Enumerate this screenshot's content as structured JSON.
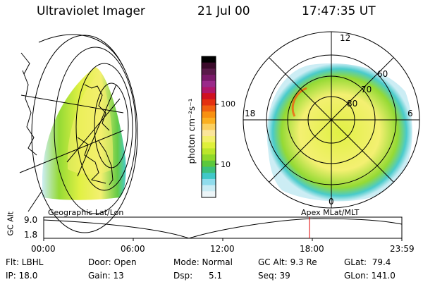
{
  "header": {
    "instrument": "Ultraviolet Imager",
    "date": "21 Jul 00",
    "time": "17:47:35 UT"
  },
  "colorbar": {
    "unit_label": "photon cm⁻²s⁻¹",
    "ticks": [
      "100",
      "10"
    ],
    "colors": [
      "#000000",
      "#3a0a2a",
      "#5a1a4a",
      "#7a1a6a",
      "#9a2a8a",
      "#b0176a",
      "#d01020",
      "#e43010",
      "#f06010",
      "#f89010",
      "#fbb020",
      "#fbd060",
      "#fbe59a",
      "#f3ef6a",
      "#dff03a",
      "#bbe62a",
      "#8fd82a",
      "#5cc83c",
      "#3cc07c",
      "#40c8c8",
      "#8fdcec",
      "#c9ecf4",
      "#ecf5f8"
    ]
  },
  "panels": {
    "left_caption": "Geographic Lat/Lon",
    "right_caption": "Apex MLat/MLT",
    "mlt_labels": {
      "top": "12",
      "left": "18",
      "right": "6",
      "bottom": "0"
    },
    "mlat_labels": [
      "60",
      "70",
      "80"
    ]
  },
  "altitude_plot": {
    "ylabel": "GC Alt",
    "yticks": [
      "9.0",
      "1.8"
    ],
    "xticks": [
      "00:00",
      "06:00",
      "12:00",
      "18:00",
      "23:59"
    ],
    "marker_color": "#e00000"
  },
  "status": {
    "row1": {
      "flt": "Flt: LBHL",
      "door": "Door: Open",
      "mode": "Mode: Normal",
      "gcalt": "GC Alt: 9.3 Re",
      "glat": "GLat:  79.4"
    },
    "row2": {
      "ip": "IP: 18.0",
      "gain": "Gain: 13",
      "dsp_label": "Dsp:",
      "dsp_value": "5.1",
      "seq": "Seq: 39",
      "glon": "GLon: 141.0"
    }
  }
}
